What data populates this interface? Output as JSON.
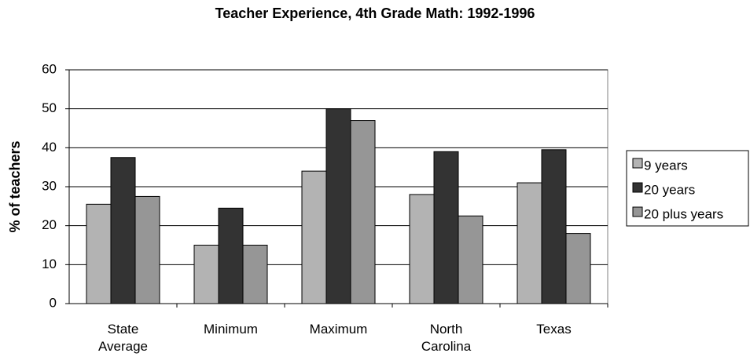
{
  "chart_data": {
    "type": "bar",
    "title": "Teacher Experience, 4th Grade Math:  1992-1996",
    "y_label": "% of teachers",
    "categories": [
      "State\nAverage",
      "Minimum",
      "Maximum",
      "North\nCarolina",
      "Texas"
    ],
    "series": [
      {
        "name": "9 years",
        "color": "#b3b3b3",
        "values": [
          25.5,
          15,
          34,
          28,
          31
        ]
      },
      {
        "name": "20 years",
        "color": "#333333",
        "values": [
          37.5,
          24.5,
          50,
          39,
          39.5
        ]
      },
      {
        "name": "20 plus years",
        "color": "#969696",
        "values": [
          27.5,
          15,
          47,
          22.5,
          18
        ]
      }
    ],
    "ylim": [
      0,
      60
    ],
    "yticks": [
      0,
      10,
      20,
      30,
      40,
      50,
      60
    ],
    "grid": true,
    "legend": "right"
  }
}
